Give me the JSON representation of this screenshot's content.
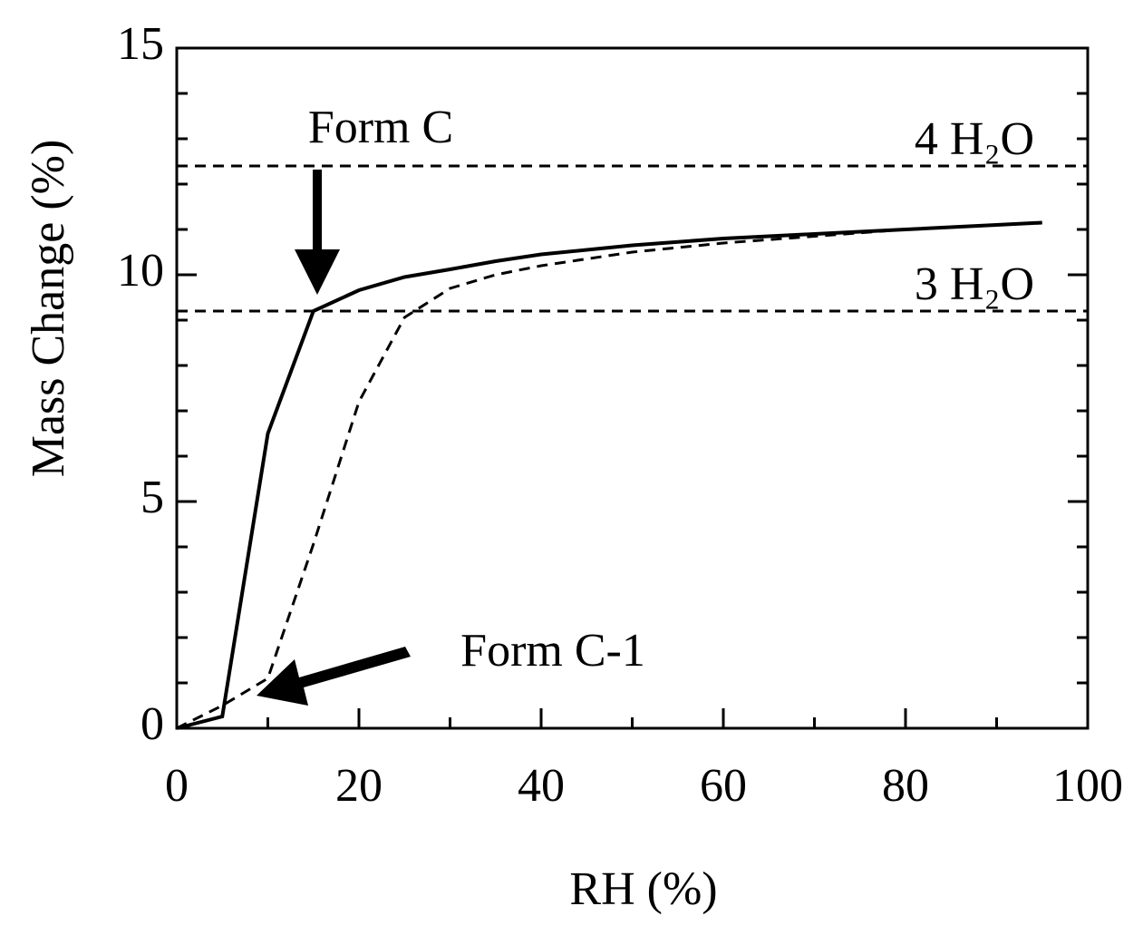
{
  "chart_data": {
    "type": "line",
    "xlabel": "RH (%)",
    "ylabel": "Mass Change (%)",
    "x": [
      0,
      5,
      10,
      15,
      20,
      25,
      30,
      35,
      40,
      50,
      60,
      70,
      80,
      90,
      95
    ],
    "series": [
      {
        "color": "#000000",
        "dash": false,
        "values": [
          0,
          0.26,
          6.5,
          9.2,
          9.66,
          9.95,
          10.12,
          10.3,
          10.45,
          10.65,
          10.8,
          10.9,
          11.0,
          11.1,
          11.15
        ]
      },
      {
        "color": "#000000",
        "dash": true,
        "values": [
          0,
          0.5,
          1.1,
          4.06,
          7.2,
          9.06,
          9.7,
          10.0,
          10.2,
          10.5,
          10.7,
          10.85,
          11.0,
          11.1,
          11.15
        ]
      }
    ],
    "hlines": [
      {
        "value": 12.4,
        "label": "4 H₂O"
      },
      {
        "value": 9.2,
        "label": "3 H₂O"
      }
    ],
    "annotations": [
      "Form C",
      "Form C-1"
    ],
    "xlim": [
      0,
      100
    ],
    "xticks": [
      0,
      20,
      40,
      60,
      80,
      100
    ],
    "x_minor_ticks": [
      10,
      30,
      50,
      70,
      90
    ],
    "ylim": [
      0,
      15
    ],
    "yticks": [
      0,
      5,
      10,
      15
    ],
    "y_minor_ticks": [
      1,
      2,
      3,
      4,
      6,
      7,
      8,
      9,
      11,
      12,
      13,
      14
    ]
  }
}
